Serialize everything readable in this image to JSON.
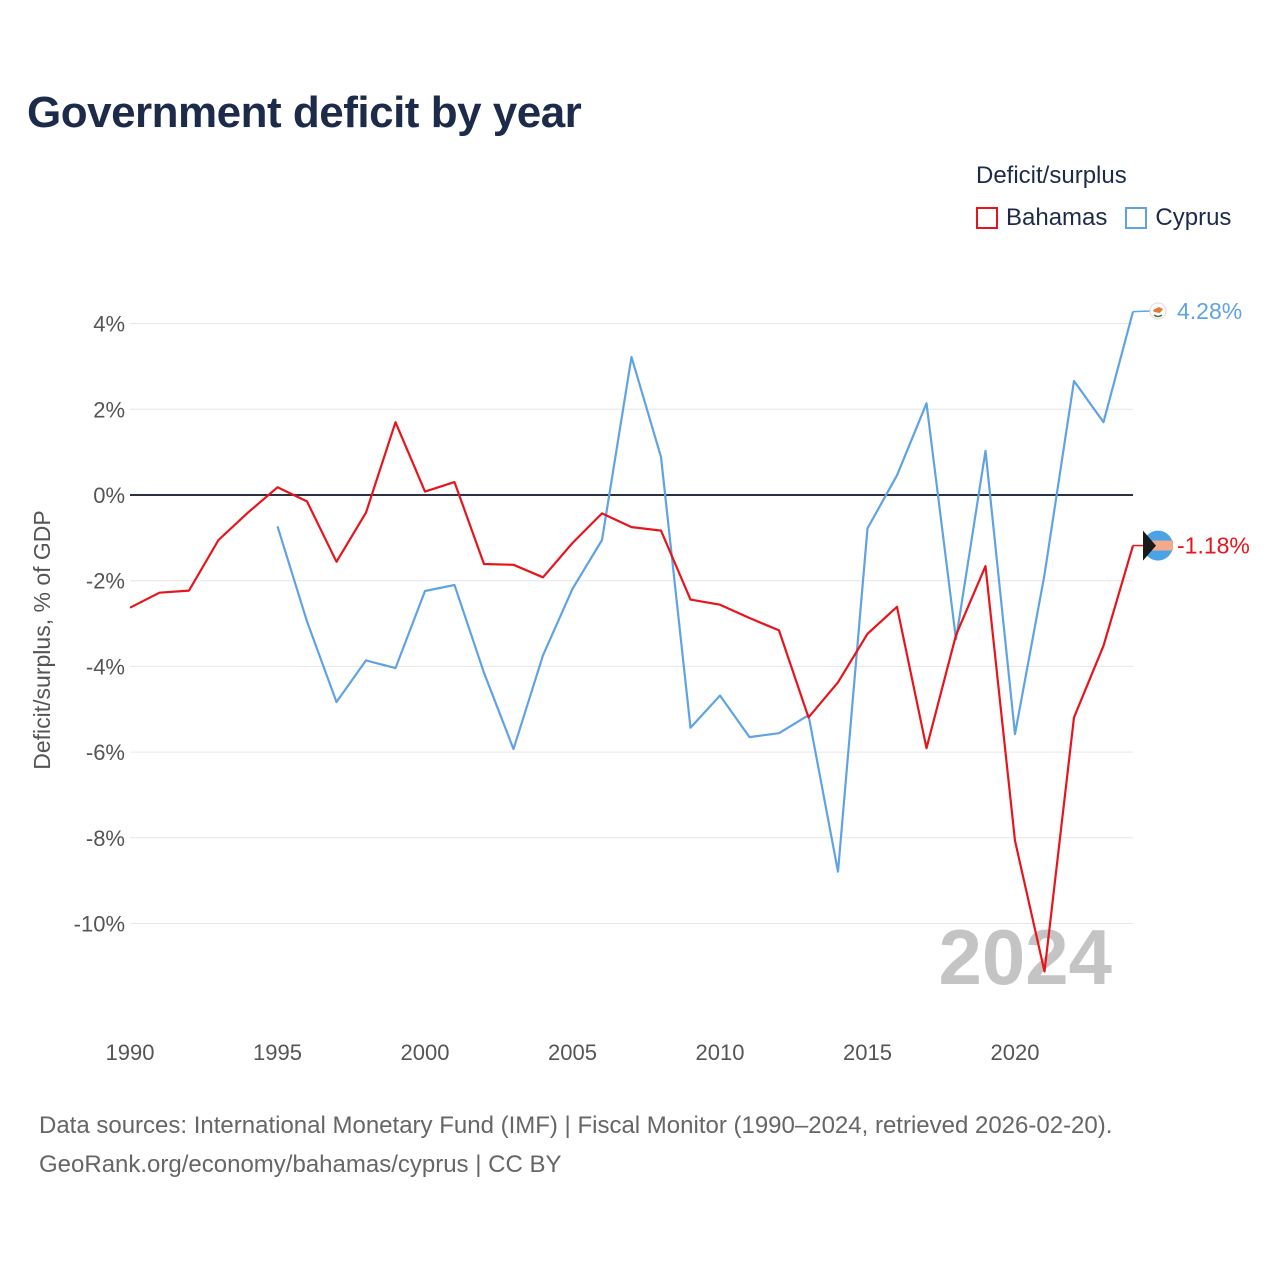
{
  "header": {
    "title": "Government deficit by year"
  },
  "legend": {
    "title": "Deficit/surplus",
    "items": [
      {
        "name": "Bahamas",
        "color": "#e8141c"
      },
      {
        "name": "Cyprus",
        "color": "#5fa3e4"
      }
    ]
  },
  "footer": {
    "line1": "Data sources: International Monetary Fund (IMF) | Fiscal Monitor (1990–2024, retrieved 2026-02-20).",
    "line2": "GeoRank.org/economy/bahamas/cyprus | CC BY"
  },
  "chart_data": {
    "type": "line",
    "title": "Government deficit by year",
    "xlabel": "",
    "ylabel": "Deficit/surplus, % of GDP",
    "xlim": [
      1990,
      2024
    ],
    "ylim": [
      -12,
      4.5
    ],
    "x_ticks": [
      "1990",
      "1995",
      "2000",
      "2005",
      "2010",
      "2015",
      "2020"
    ],
    "y_ticks": [
      {
        "value": 4,
        "label": "4%"
      },
      {
        "value": 2,
        "label": "2%"
      },
      {
        "value": 0,
        "label": "0%"
      },
      {
        "value": -2,
        "label": "-2%"
      },
      {
        "value": -4,
        "label": "-4%"
      },
      {
        "value": -6,
        "label": "-6%"
      },
      {
        "value": -8,
        "label": "-8%"
      },
      {
        "value": -10,
        "label": "-10%"
      }
    ],
    "watermark_year": "2024",
    "zero_line": true,
    "grid": true,
    "series": [
      {
        "name": "Bahamas",
        "color": "#e8141c",
        "end_label": "-1.18%",
        "x": [
          1990,
          1991,
          1992,
          1993,
          1994,
          1995,
          1996,
          1997,
          1998,
          1999,
          2000,
          2001,
          2002,
          2003,
          2004,
          2005,
          2006,
          2007,
          2008,
          2009,
          2010,
          2011,
          2012,
          2013,
          2014,
          2015,
          2016,
          2017,
          2018,
          2019,
          2020,
          2021,
          2022,
          2023,
          2024
        ],
        "values": [
          -2.63,
          -2.28,
          -2.23,
          -1.05,
          -0.41,
          0.18,
          -0.15,
          -1.56,
          -0.41,
          1.7,
          0.08,
          0.3,
          -1.61,
          -1.63,
          -1.92,
          -1.12,
          -0.43,
          -0.75,
          -0.83,
          -2.44,
          -2.56,
          -2.87,
          -3.16,
          -5.19,
          -4.37,
          -3.24,
          -2.61,
          -5.91,
          -3.27,
          -1.66,
          -8.07,
          -11.12,
          -5.19,
          -3.52,
          -1.18
        ]
      },
      {
        "name": "Cyprus",
        "color": "#5fa3e4",
        "end_label": "4.28%",
        "x": [
          1995,
          1996,
          1997,
          1998,
          1999,
          2000,
          2001,
          2002,
          2003,
          2004,
          2005,
          2006,
          2007,
          2008,
          2009,
          2010,
          2011,
          2012,
          2013,
          2014,
          2015,
          2016,
          2017,
          2018,
          2019,
          2020,
          2021,
          2022,
          2023,
          2024
        ],
        "values": [
          -0.73,
          -2.95,
          -4.83,
          -3.86,
          -4.04,
          -2.24,
          -2.1,
          -4.15,
          -5.93,
          -3.74,
          -2.19,
          -1.05,
          3.22,
          0.89,
          -5.43,
          -4.68,
          -5.65,
          -5.56,
          -5.14,
          -8.79,
          -0.78,
          0.46,
          2.14,
          -3.37,
          1.03,
          -5.58,
          -1.86,
          2.66,
          1.7,
          4.28
        ]
      }
    ]
  }
}
